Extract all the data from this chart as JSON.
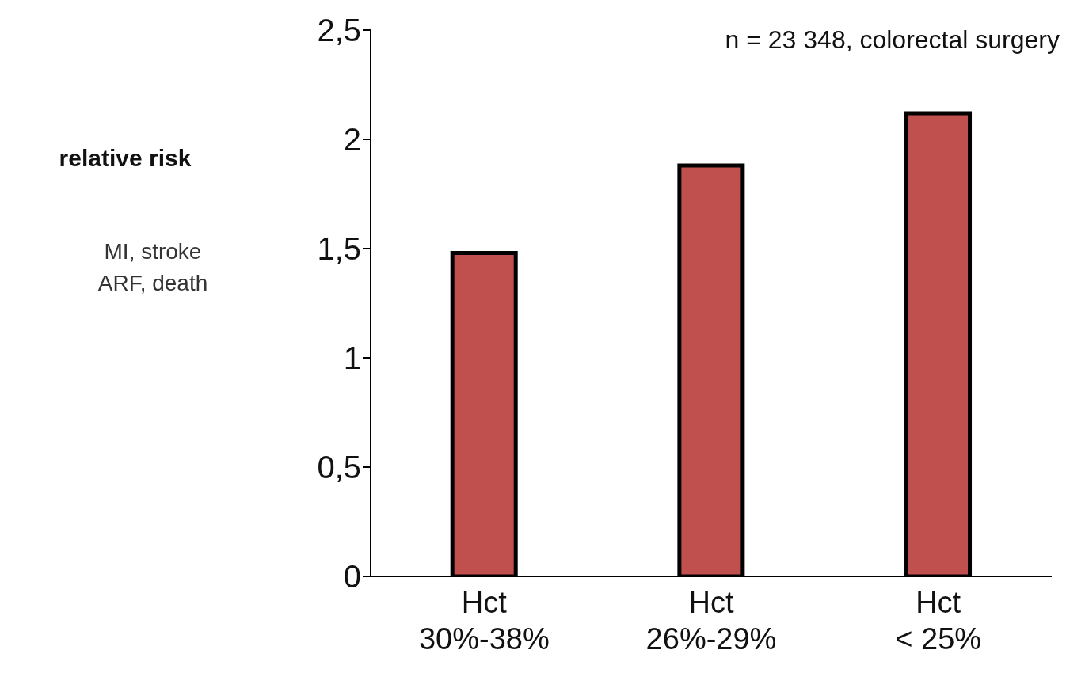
{
  "chart_data": {
    "type": "bar",
    "annotations": [
      "relative risk",
      "MI, stroke\nARF, death",
      "n = 23 348, colorectal surgery"
    ],
    "categories": [
      "Hct\n30%-38%",
      "Hct\n26%-29%",
      "Hct\n< 25%"
    ],
    "values": [
      1.48,
      1.88,
      2.12
    ],
    "color": "#c0504d",
    "ylim": [
      0,
      2.5
    ],
    "yticks": [
      0,
      {
        "value": 0.5,
        "label": "0,5"
      },
      1,
      {
        "value": 1.5,
        "label": "1,5"
      },
      2,
      {
        "value": 2.5,
        "label": "2,5"
      }
    ]
  }
}
